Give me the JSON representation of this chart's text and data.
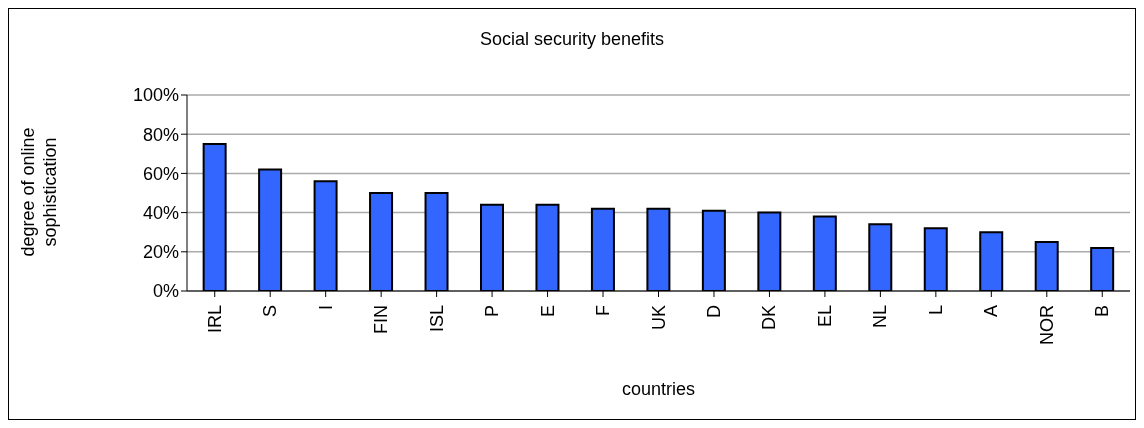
{
  "chart_data": {
    "type": "bar",
    "title": "Social security benefits",
    "xlabel": "countries",
    "ylabel": "degree of online sophistication",
    "categories": [
      "IRL",
      "S",
      "I",
      "FIN",
      "ISL",
      "P",
      "E",
      "F",
      "UK",
      "D",
      "DK",
      "EL",
      "NL",
      "L",
      "A",
      "NOR",
      "B"
    ],
    "values": [
      75,
      62,
      56,
      50,
      50,
      44,
      44,
      42,
      42,
      41,
      40,
      38,
      34,
      32,
      30,
      25,
      22
    ],
    "color": "#3366ff",
    "ylim": [
      0,
      100
    ],
    "yticks": [
      {
        "value": 0,
        "label": "0%"
      },
      {
        "value": 20,
        "label": "20%"
      },
      {
        "value": 40,
        "label": "40%"
      },
      {
        "value": 60,
        "label": "60%"
      },
      {
        "value": 80,
        "label": "80%"
      },
      {
        "value": 100,
        "label": "100%"
      }
    ],
    "grid": "y"
  }
}
